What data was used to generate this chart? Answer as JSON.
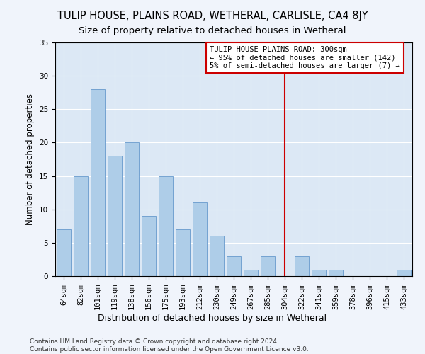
{
  "title": "TULIP HOUSE, PLAINS ROAD, WETHERAL, CARLISLE, CA4 8JY",
  "subtitle": "Size of property relative to detached houses in Wetheral",
  "xlabel": "Distribution of detached houses by size in Wetheral",
  "ylabel": "Number of detached properties",
  "categories": [
    "64sqm",
    "82sqm",
    "101sqm",
    "119sqm",
    "138sqm",
    "156sqm",
    "175sqm",
    "193sqm",
    "212sqm",
    "230sqm",
    "249sqm",
    "267sqm",
    "285sqm",
    "304sqm",
    "322sqm",
    "341sqm",
    "359sqm",
    "378sqm",
    "396sqm",
    "415sqm",
    "433sqm"
  ],
  "values": [
    7,
    15,
    28,
    18,
    20,
    9,
    15,
    7,
    11,
    6,
    3,
    1,
    3,
    0,
    3,
    1,
    1,
    0,
    0,
    0,
    1
  ],
  "bar_color": "#aecde8",
  "bar_edge_color": "#6699cc",
  "vline_x": 13.0,
  "vline_color": "#cc0000",
  "annotation_text": "TULIP HOUSE PLAINS ROAD: 300sqm\n← 95% of detached houses are smaller (142)\n5% of semi-detached houses are larger (7) →",
  "annotation_box_facecolor": "#ffffff",
  "annotation_box_edgecolor": "#cc0000",
  "ylim": [
    0,
    35
  ],
  "yticks": [
    0,
    5,
    10,
    15,
    20,
    25,
    30,
    35
  ],
  "bg_color": "#dce8f5",
  "fig_bg_color": "#f0f4fb",
  "footer": "Contains HM Land Registry data © Crown copyright and database right 2024.\nContains public sector information licensed under the Open Government Licence v3.0.",
  "title_fontsize": 10.5,
  "subtitle_fontsize": 9.5,
  "xlabel_fontsize": 9,
  "ylabel_fontsize": 8.5,
  "tick_fontsize": 7.5,
  "footer_fontsize": 6.5
}
